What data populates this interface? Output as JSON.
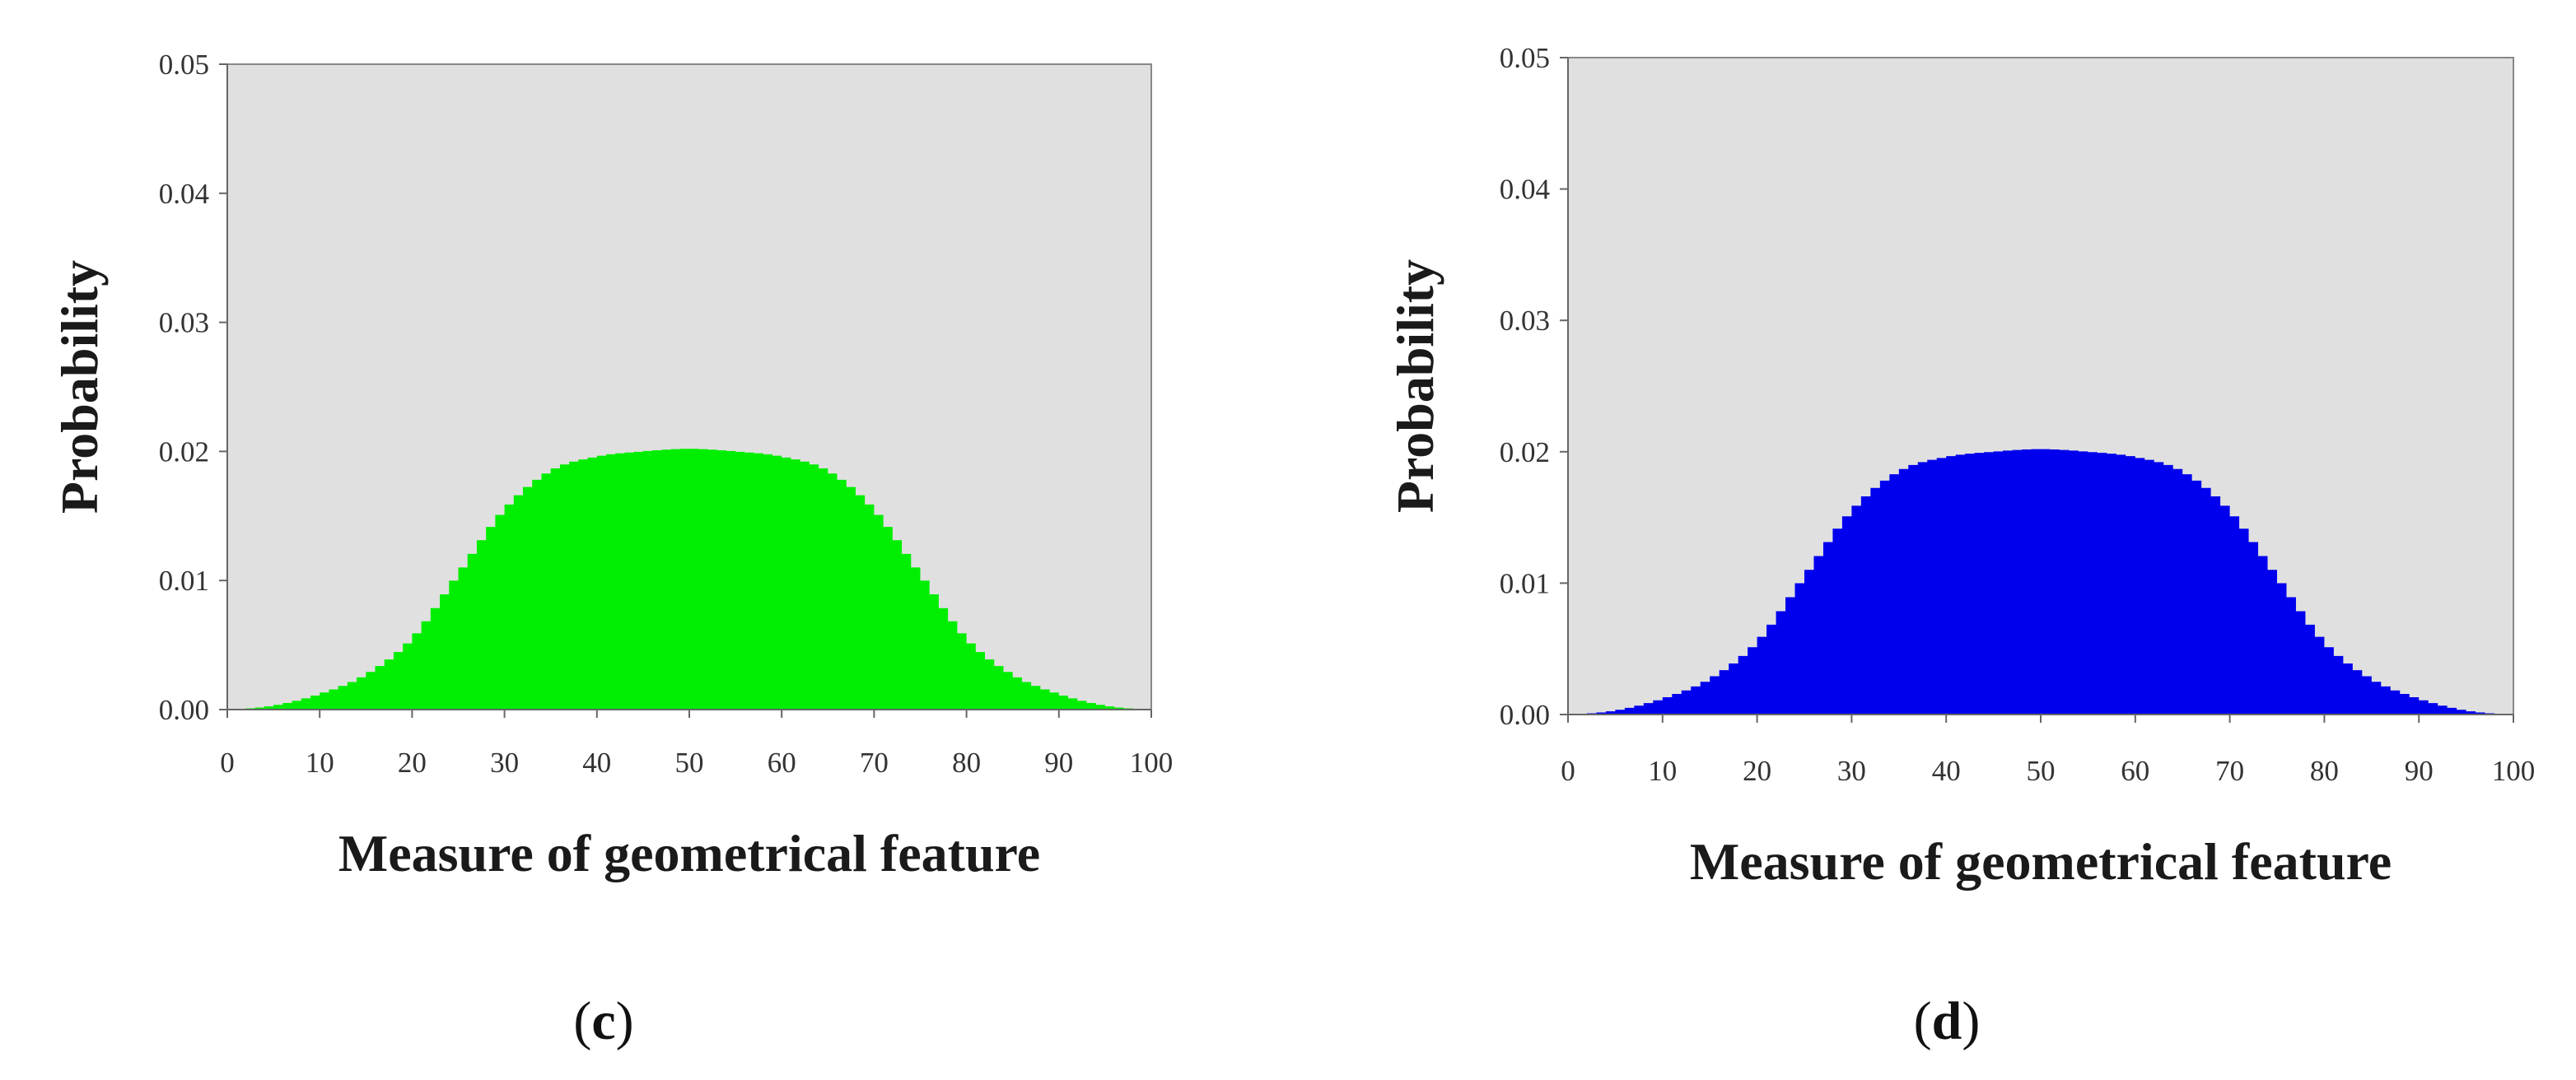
{
  "chart_data": [
    {
      "type": "area",
      "caption": "c",
      "xlabel": "Measure of geometrical feature",
      "ylabel": "Probability",
      "xlim": [
        0,
        100
      ],
      "ylim": [
        0,
        0.05
      ],
      "x_ticks": [
        "0",
        "10",
        "20",
        "30",
        "40",
        "50",
        "60",
        "70",
        "80",
        "90",
        "100"
      ],
      "y_ticks": [
        "0.00",
        "0.01",
        "0.02",
        "0.03",
        "0.04",
        "0.05"
      ],
      "grid": false,
      "plot_background": "#e0e0e0",
      "fill_color": "#00ee00",
      "x": [
        0,
        5,
        10,
        15,
        20,
        25,
        30,
        35,
        40,
        45,
        50,
        55,
        60,
        65,
        70,
        75,
        80,
        85,
        90,
        95,
        100
      ],
      "y": [
        0.0,
        0.0003,
        0.0012,
        0.0027,
        0.0055,
        0.0105,
        0.0155,
        0.0185,
        0.0196,
        0.02,
        0.0202,
        0.02,
        0.0196,
        0.0185,
        0.0155,
        0.0105,
        0.0055,
        0.0027,
        0.0012,
        0.0003,
        0.0
      ]
    },
    {
      "type": "area",
      "caption": "d",
      "xlabel": "Measure of geometrical feature",
      "ylabel": "Probability",
      "xlim": [
        0,
        100
      ],
      "ylim": [
        0,
        0.05
      ],
      "x_ticks": [
        "0",
        "10",
        "20",
        "30",
        "40",
        "50",
        "60",
        "70",
        "80",
        "90",
        "100"
      ],
      "y_ticks": [
        "0.00",
        "0.01",
        "0.02",
        "0.03",
        "0.04",
        "0.05"
      ],
      "grid": false,
      "plot_background": "#e0e0e0",
      "fill_color": "#0000ee",
      "x": [
        0,
        5,
        10,
        15,
        20,
        25,
        30,
        35,
        40,
        45,
        50,
        55,
        60,
        65,
        70,
        75,
        80,
        85,
        90,
        95,
        100
      ],
      "y": [
        0.0,
        0.0003,
        0.0012,
        0.0027,
        0.0055,
        0.0105,
        0.0155,
        0.0185,
        0.0196,
        0.02,
        0.0202,
        0.02,
        0.0196,
        0.0185,
        0.0155,
        0.0105,
        0.0055,
        0.0027,
        0.0012,
        0.0003,
        0.0
      ]
    }
  ]
}
